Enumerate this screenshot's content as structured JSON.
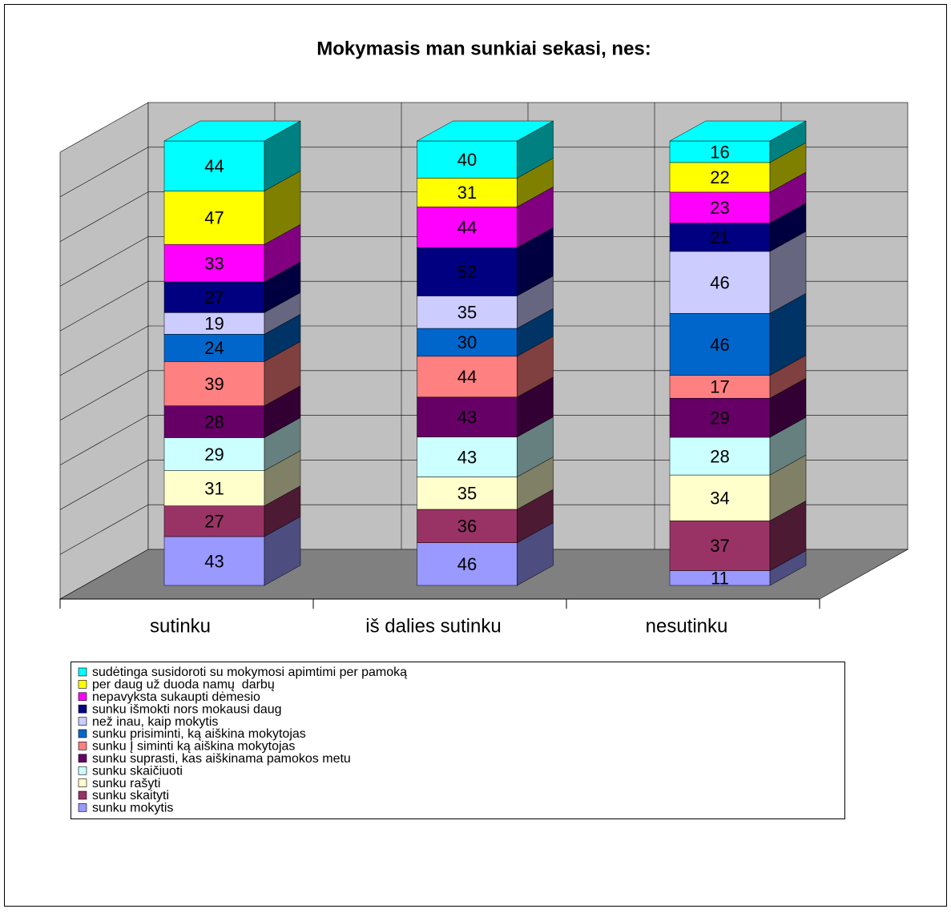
{
  "chart_data": {
    "type": "bar",
    "stacking": "percent",
    "title": "Mokymasis man sunkiai sekasi, nes:",
    "categories": [
      "sutinku",
      "iš dalies sutinku",
      "nesutinku"
    ],
    "series": [
      {
        "name": "sunku mokytis",
        "color": "#9999ff",
        "values": [
          43,
          46,
          11
        ]
      },
      {
        "name": "sunku skaityti",
        "color": "#993366",
        "values": [
          27,
          36,
          37
        ]
      },
      {
        "name": "sunku rašyti",
        "color": "#ffffcc",
        "values": [
          31,
          35,
          34
        ]
      },
      {
        "name": "sunku skaičiuoti",
        "color": "#ccffff",
        "values": [
          29,
          43,
          28
        ]
      },
      {
        "name": "sunku suprasti, kas aiškinama pamokos metu",
        "color": "#660066",
        "values": [
          28,
          43,
          29
        ]
      },
      {
        "name": "sunku Į siminti ką aiškina mokytojas",
        "color": "#ff8080",
        "values": [
          39,
          44,
          17
        ]
      },
      {
        "name": "sunku prisiminti, ką aiškina mokytojas",
        "color": "#0066cc",
        "values": [
          24,
          30,
          46
        ]
      },
      {
        "name": "než inau, kaip mokytis",
        "color": "#ccccff",
        "values": [
          19,
          35,
          46
        ]
      },
      {
        "name": "sunku išmokti nors mokausi daug",
        "color": "#000080",
        "values": [
          27,
          52,
          21
        ]
      },
      {
        "name": "nepavyksta sukaupti dėmesio",
        "color": "#ff00ff",
        "values": [
          33,
          44,
          23
        ]
      },
      {
        "name": "per daug už duoda namų  darbų",
        "color": "#ffff00",
        "values": [
          47,
          31,
          22
        ]
      },
      {
        "name": "sudėtinga susidoroti su mokymosi apimtimi per pamoką",
        "color": "#00ffff",
        "values": [
          44,
          40,
          16
        ]
      }
    ],
    "ylim": [
      0,
      100
    ],
    "yticks": [
      0,
      10,
      20,
      30,
      40,
      50,
      60,
      70,
      80,
      90,
      100
    ],
    "grid": true,
    "legend": "bottom"
  }
}
